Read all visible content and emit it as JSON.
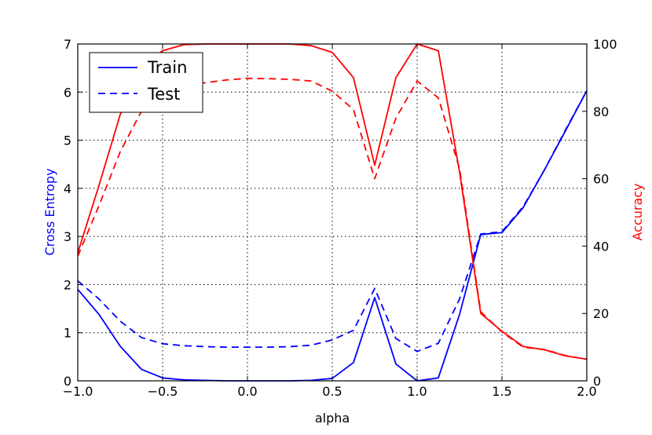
{
  "chart_data": {
    "type": "line",
    "xlabel": "alpha",
    "ylabel_left": "Cross Entropy",
    "ylabel_right": "Accuracy",
    "xlim": [
      -1.0,
      2.0
    ],
    "ylim_left": [
      0,
      7
    ],
    "ylim_right": [
      0,
      100
    ],
    "grid": true,
    "legend_position": "top-left",
    "x_ticks": [
      "−1.0",
      "−0.5",
      "0.0",
      "0.5",
      "1.0",
      "1.5",
      "2.0"
    ],
    "y_left_ticks": [
      "0",
      "1",
      "2",
      "3",
      "4",
      "5",
      "6",
      "7"
    ],
    "y_right_ticks": [
      "0",
      "20",
      "40",
      "60",
      "80",
      "100"
    ],
    "colors": {
      "loss": "#0000ff",
      "accuracy": "#ff0000"
    },
    "x": [
      -1.0,
      -0.875,
      -0.75,
      -0.625,
      -0.5,
      -0.375,
      -0.25,
      -0.125,
      0.0,
      0.125,
      0.25,
      0.375,
      0.5,
      0.625,
      0.75,
      0.875,
      1.0,
      1.125,
      1.25,
      1.375,
      1.5,
      1.625,
      1.75,
      1.875,
      2.0
    ],
    "series": [
      {
        "name": "Train",
        "axis": "left",
        "style": "solid",
        "legend": true,
        "values": [
          1.9,
          1.38,
          0.72,
          0.24,
          0.06,
          0.02,
          0.01,
          0.0,
          0.0,
          0.0,
          0.0,
          0.01,
          0.05,
          0.38,
          1.73,
          0.35,
          0.0,
          0.06,
          1.38,
          3.04,
          3.08,
          3.6,
          4.38,
          5.2,
          6.03
        ]
      },
      {
        "name": "Test",
        "axis": "left",
        "style": "dashed",
        "legend": true,
        "values": [
          2.08,
          1.7,
          1.24,
          0.9,
          0.77,
          0.73,
          0.71,
          0.7,
          0.7,
          0.7,
          0.71,
          0.74,
          0.85,
          1.05,
          1.92,
          0.88,
          0.61,
          0.78,
          1.7,
          3.05,
          3.1,
          3.62,
          4.38,
          5.22,
          6.03
        ]
      },
      {
        "name": "Train accuracy",
        "axis": "right",
        "style": "solid",
        "legend": false,
        "values": [
          38,
          58,
          79,
          93,
          98,
          99.8,
          100,
          100,
          100,
          100,
          100,
          99.5,
          97.5,
          90,
          64,
          90,
          100,
          98,
          62,
          20,
          14.7,
          10.2,
          9.2,
          7.4,
          6.4
        ]
      },
      {
        "name": "Test accuracy",
        "axis": "right",
        "style": "dashed",
        "legend": false,
        "values": [
          37,
          52,
          68,
          80,
          85.5,
          87.5,
          88.5,
          89.3,
          89.8,
          89.7,
          89.5,
          89,
          86,
          80.5,
          60,
          78,
          89,
          84,
          63,
          20.5,
          14.5,
          10,
          9.3,
          7.5,
          6.4
        ]
      }
    ]
  }
}
